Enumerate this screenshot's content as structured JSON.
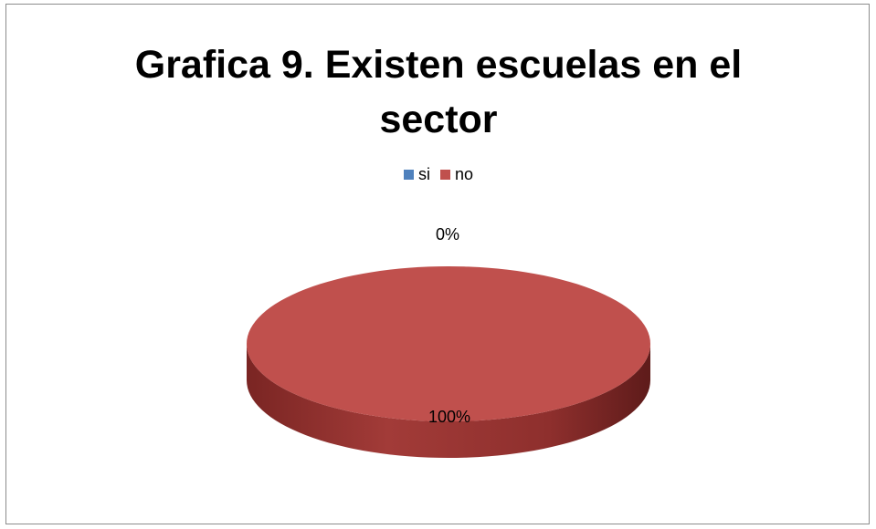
{
  "chart_data": {
    "type": "pie",
    "title": "Grafica 9.  Existen escuelas  en el sector",
    "title_lines": [
      "Grafica 9.  Existen escuelas  en el",
      "sector"
    ],
    "categories": [
      "si",
      "no"
    ],
    "values": [
      0,
      100
    ],
    "data_labels": [
      "0%",
      "100%"
    ],
    "colors": [
      "#4f81bd",
      "#c0504d"
    ],
    "legend_position": "top",
    "three_d": true
  }
}
